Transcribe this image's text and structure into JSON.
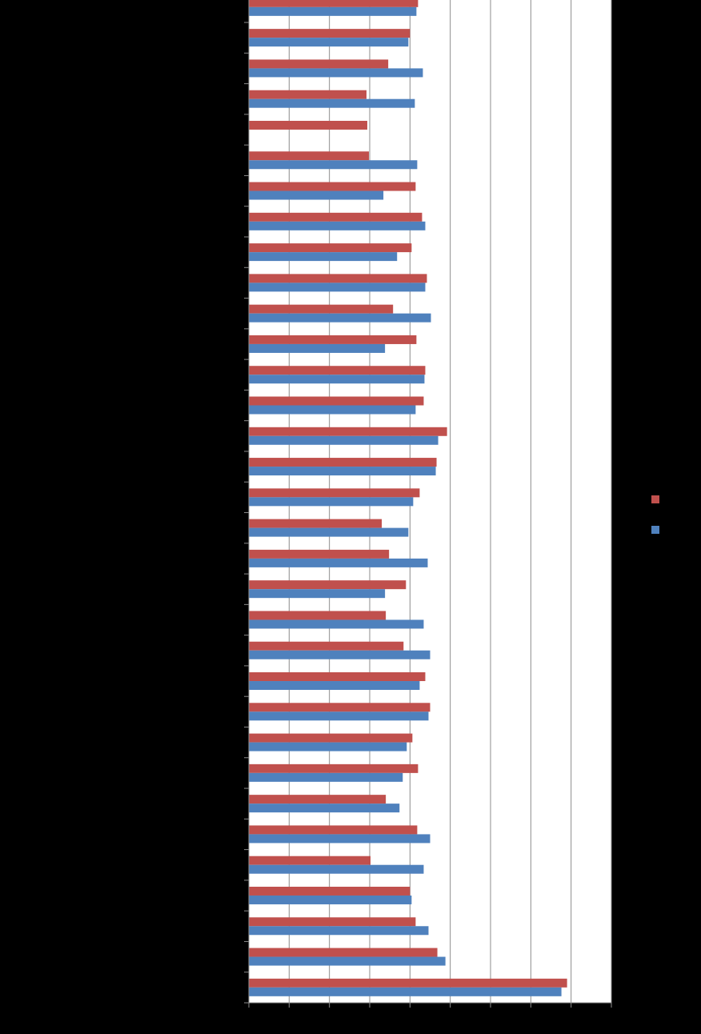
{
  "chart_data": {
    "type": "bar",
    "orientation": "horizontal",
    "categories": [
      "",
      "",
      "",
      "",
      "",
      "",
      "",
      "",
      "",
      "",
      "",
      "",
      "",
      "",
      "",
      "",
      "",
      "",
      "",
      "",
      "",
      "",
      "",
      "",
      "",
      "",
      "",
      "",
      "",
      "",
      "",
      "",
      ""
    ],
    "series": [
      {
        "color": "#c0504d",
        "values": [
          210,
          200,
          173,
          146,
          147,
          149,
          207,
          215,
          202,
          221,
          179,
          208,
          219,
          217,
          246,
          233,
          212,
          165,
          174,
          195,
          170,
          192,
          219,
          225,
          203,
          210,
          170,
          209,
          151,
          200,
          207,
          234,
          395
        ]
      },
      {
        "color": "#4f81bd",
        "values": [
          208,
          198,
          216,
          206,
          null,
          209,
          167,
          219,
          184,
          219,
          226,
          169,
          218,
          207,
          235,
          232,
          204,
          198,
          222,
          169,
          217,
          225,
          212,
          223,
          196,
          191,
          187,
          225,
          217,
          202,
          223,
          244,
          388
        ]
      }
    ],
    "xlim": [
      0,
      450
    ],
    "grid": true,
    "legend": "right"
  }
}
